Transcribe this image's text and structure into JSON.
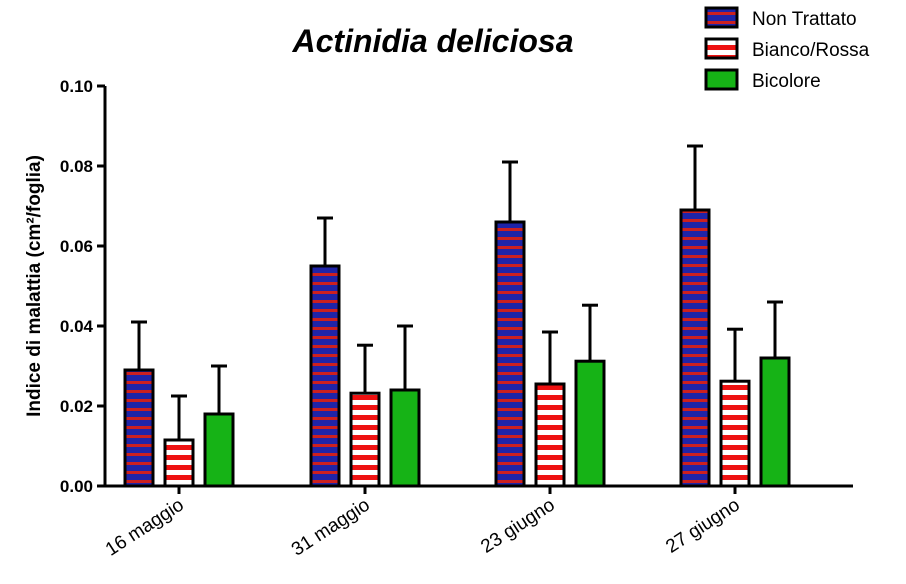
{
  "chart_data": {
    "type": "bar",
    "title": "Actinidia deliciosa",
    "ylabel": "Indice di malattia (cm²/foglia)",
    "ylim": [
      0,
      0.1
    ],
    "yticks": [
      "0.00",
      "0.02",
      "0.04",
      "0.06",
      "0.08",
      "0.10"
    ],
    "categories": [
      "16 maggio",
      "31 maggio",
      "23 giugno",
      "27 giugno"
    ],
    "error_bars": "upper",
    "legend_position": "top-right",
    "series": [
      {
        "name": "Non Trattato",
        "values": [
          0.029,
          0.055,
          0.066,
          0.069
        ],
        "errors": [
          0.012,
          0.012,
          0.015,
          0.016
        ],
        "color": "#1f24a8",
        "stripe": "#cc2020"
      },
      {
        "name": "Bianco/Rossa",
        "values": [
          0.0115,
          0.0232,
          0.0255,
          0.0262
        ],
        "errors": [
          0.011,
          0.012,
          0.013,
          0.013
        ],
        "color": "#ffffff",
        "stripe": "#ee1111"
      },
      {
        "name": "Bicolore",
        "values": [
          0.018,
          0.024,
          0.0312,
          0.032
        ],
        "errors": [
          0.012,
          0.016,
          0.014,
          0.014
        ],
        "color": "#16b316",
        "stripe": ""
      }
    ]
  }
}
